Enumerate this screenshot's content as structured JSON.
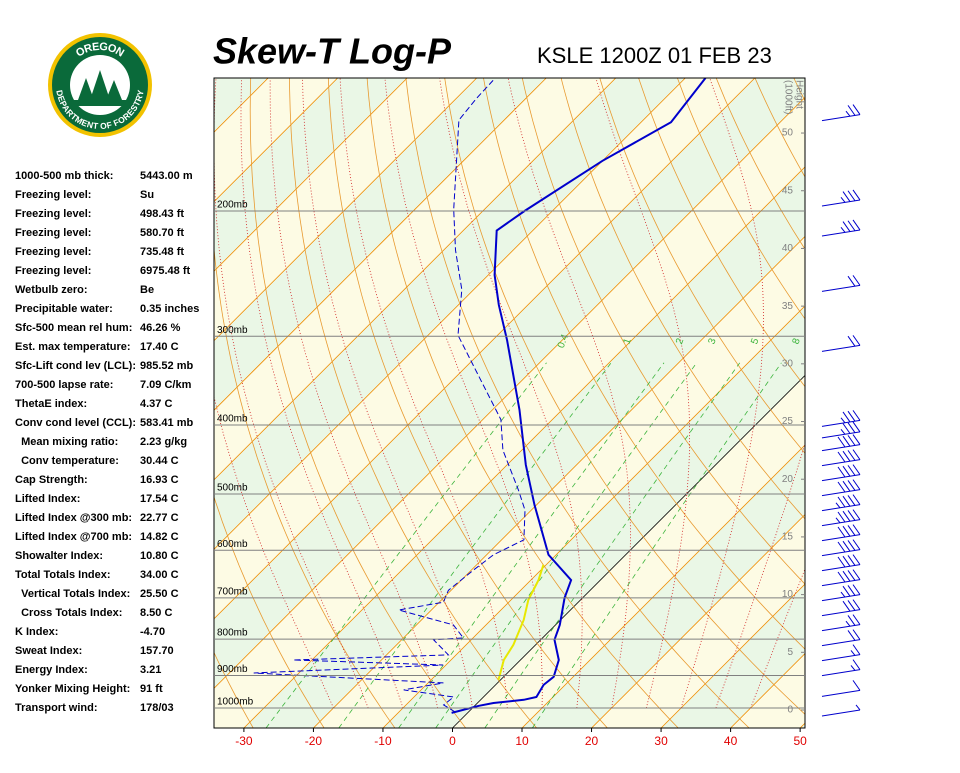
{
  "logo": {
    "top": "OREGON",
    "bottom": "DEPARTMENT OF FORESTRY"
  },
  "header": {
    "title": "Skew-T Log-P",
    "station": "KSLE 1200Z 01 FEB 23"
  },
  "indices": [
    [
      "1000-500 mb thick:",
      "5443.00 m"
    ],
    [
      "Freezing level:",
      "Su"
    ],
    [
      "Freezing level:",
      "498.43 ft"
    ],
    [
      "Freezing level:",
      "580.70 ft"
    ],
    [
      "Freezing level:",
      "735.48 ft"
    ],
    [
      "Freezing level:",
      "6975.48 ft"
    ],
    [
      "Wetbulb zero:",
      "Be"
    ],
    [
      "Precipitable water:",
      "0.35 inches"
    ],
    [
      "Sfc-500 mean rel hum:",
      "46.26 %"
    ],
    [
      "Est. max temperature:",
      "17.40 C"
    ],
    [
      "Sfc-Lift cond lev (LCL):",
      "985.52 mb"
    ],
    [
      "700-500 lapse rate:",
      "7.09 C/km"
    ],
    [
      "ThetaE index:",
      "4.37 C"
    ],
    [
      "Conv cond level (CCL):",
      "583.41 mb"
    ],
    [
      "  Mean mixing ratio:",
      "2.23 g/kg"
    ],
    [
      "  Conv temperature:",
      "30.44 C"
    ],
    [
      "Cap Strength:",
      "16.93 C"
    ],
    [
      "Lifted Index:",
      "17.54 C"
    ],
    [
      "Lifted Index @300 mb:",
      "22.77 C"
    ],
    [
      "Lifted Index @700 mb:",
      "14.82 C"
    ],
    [
      "Showalter Index:",
      "10.80 C"
    ],
    [
      "Total Totals Index:",
      "34.00 C"
    ],
    [
      "  Vertical Totals Index:",
      "25.50 C"
    ],
    [
      "  Cross Totals Index:",
      "8.50 C"
    ],
    [
      "K Index:",
      "-4.70"
    ],
    [
      "Sweat Index:",
      "157.70"
    ],
    [
      "Energy Index:",
      "3.21"
    ],
    [
      "Yonker Mixing Height:",
      "91 ft"
    ],
    [
      "Transport wind:",
      "178/03"
    ]
  ],
  "chart_data": {
    "type": "skewt",
    "xlim": [
      -34.3,
      50.7
    ],
    "xticks": [
      -30,
      -20,
      -10,
      0,
      10,
      20,
      30,
      40,
      50
    ],
    "ylim": [
      1067,
      130
    ],
    "log_y": true,
    "yticks": [
      {
        "value": 1000,
        "label": "1000mb"
      },
      {
        "value": 900,
        "label": "900mb"
      },
      {
        "value": 800,
        "label": "800mb"
      },
      {
        "value": 700,
        "label": "700mb"
      },
      {
        "value": 600,
        "label": "600mb"
      },
      {
        "value": 500,
        "label": "500mb"
      },
      {
        "value": 400,
        "label": "400mb"
      },
      {
        "value": 300,
        "label": "300mb"
      },
      {
        "value": 200,
        "label": "200mb"
      }
    ],
    "height_label": [
      "Height",
      "(1000ft)"
    ],
    "height_lim": [
      -1.56,
      54.77
    ],
    "height_ticks": [
      0,
      5,
      10,
      15,
      20,
      25,
      30,
      35,
      40,
      45,
      50
    ],
    "mixing_ratios": [
      0.4,
      1,
      2,
      3,
      5,
      8
    ],
    "series": [
      {
        "color": "#0000cc",
        "style": "solid",
        "pressure": [
          1016,
          993,
          984,
          974,
          965,
          928,
          904,
          856,
          802,
          764,
          700,
          661,
          609,
          518,
          455,
          381,
          304,
          271,
          246,
          213,
          200,
          170,
          150,
          130
        ],
        "values": [
          -2.3,
          0.6,
          2.3,
          6.2,
          7.6,
          6.9,
          7.2,
          5.5,
          2.0,
          0.6,
          -2.6,
          -4.2,
          -11.1,
          -20.3,
          -27.3,
          -36.1,
          -47.9,
          -54.2,
          -59.1,
          -65.2,
          -64.0,
          -60.0,
          -55.7,
          -57.1
        ]
      },
      {
        "color": "#0000cc",
        "style": "dashed",
        "pressure": [
          1013,
          990,
          965,
          943,
          922,
          893,
          870,
          856,
          842,
          802,
          797,
          764,
          728,
          710,
          683,
          640,
          609,
          580,
          527,
          494,
          434,
          393,
          333,
          299,
          258,
          227,
          199,
          149,
          139,
          131
        ],
        "values": [
          -1.9,
          -4.6,
          -4.3,
          -12.5,
          -7.8,
          -36.5,
          -10.4,
          -32.7,
          -11.1,
          -15.4,
          -11.4,
          -14.7,
          -24.7,
          -19.4,
          -20.4,
          -19.7,
          -19.0,
          -16.8,
          -20.9,
          -24.7,
          -32.7,
          -37.4,
          -48.5,
          -55.7,
          -61.7,
          -68.3,
          -74.4,
          -86.5,
          -87.1,
          -87.3
        ]
      },
      {
        "color": "#e8e800",
        "style": "solid",
        "pressure": [
          913,
          856,
          815,
          752,
          705,
          661,
          629
        ],
        "values": [
          -0.3,
          -2.4,
          -3.2,
          -5.3,
          -7.5,
          -8.9,
          -10.4
        ]
      }
    ],
    "wind": {
      "heights": [
        51.6,
        44.2,
        41.6,
        36.8,
        31.6,
        25.1,
        24.1,
        23.0,
        21.7,
        20.4,
        19.1,
        17.8,
        16.5,
        15.2,
        13.9,
        12.6,
        11.3,
        10.0,
        8.7,
        7.4,
        6.1,
        4.8,
        3.5,
        1.7,
        0
      ],
      "speeds": [
        25,
        35,
        35,
        20,
        20,
        35,
        35,
        40,
        40,
        40,
        40,
        45,
        45,
        40,
        40,
        40,
        40,
        35,
        30,
        25,
        20,
        15,
        15,
        10,
        5
      ]
    }
  }
}
